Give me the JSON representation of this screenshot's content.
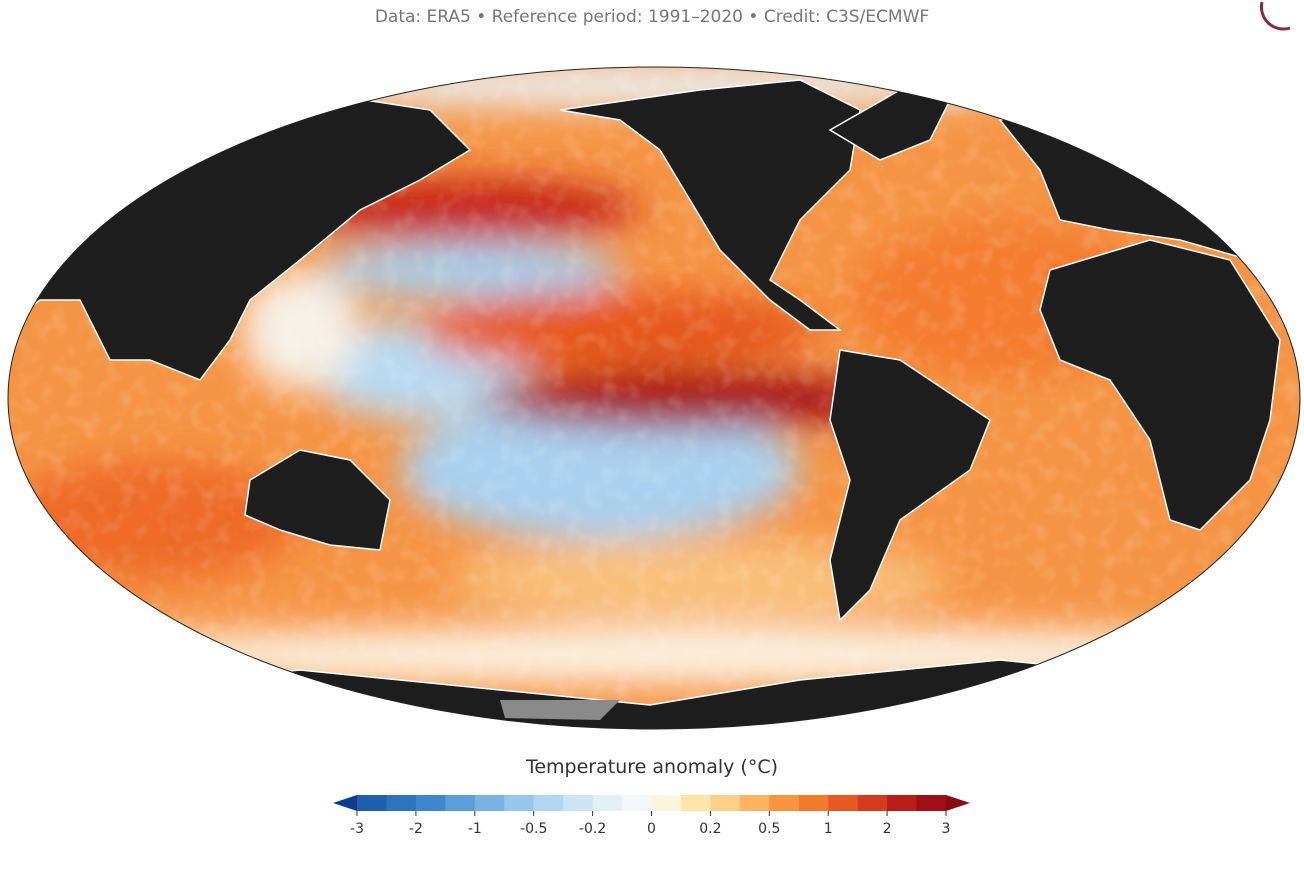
{
  "header": {
    "subtitle": "Data: ERA5 • Reference period: 1991–2020 • Credit: C3S/ECMWF"
  },
  "legend": {
    "title": "Temperature anomaly (°C)",
    "ticks": [
      -3,
      -2,
      -1,
      -0.5,
      -0.2,
      0,
      0.2,
      0.5,
      1,
      2,
      3
    ],
    "colors": [
      "#0b3d8c",
      "#1f5fae",
      "#2c74bf",
      "#3d88cc",
      "#5a9fd8",
      "#78b4e2",
      "#95c7ea",
      "#b2d7f0",
      "#cce4f4",
      "#e2f0f8",
      "#f2f8fa",
      "#fbf5dc",
      "#fde6a8",
      "#fdd08a",
      "#fcb460",
      "#f89640",
      "#f27a2d",
      "#e65a22",
      "#d33b1c",
      "#ba1e18",
      "#a00f15",
      "#8a0a12"
    ]
  }
}
